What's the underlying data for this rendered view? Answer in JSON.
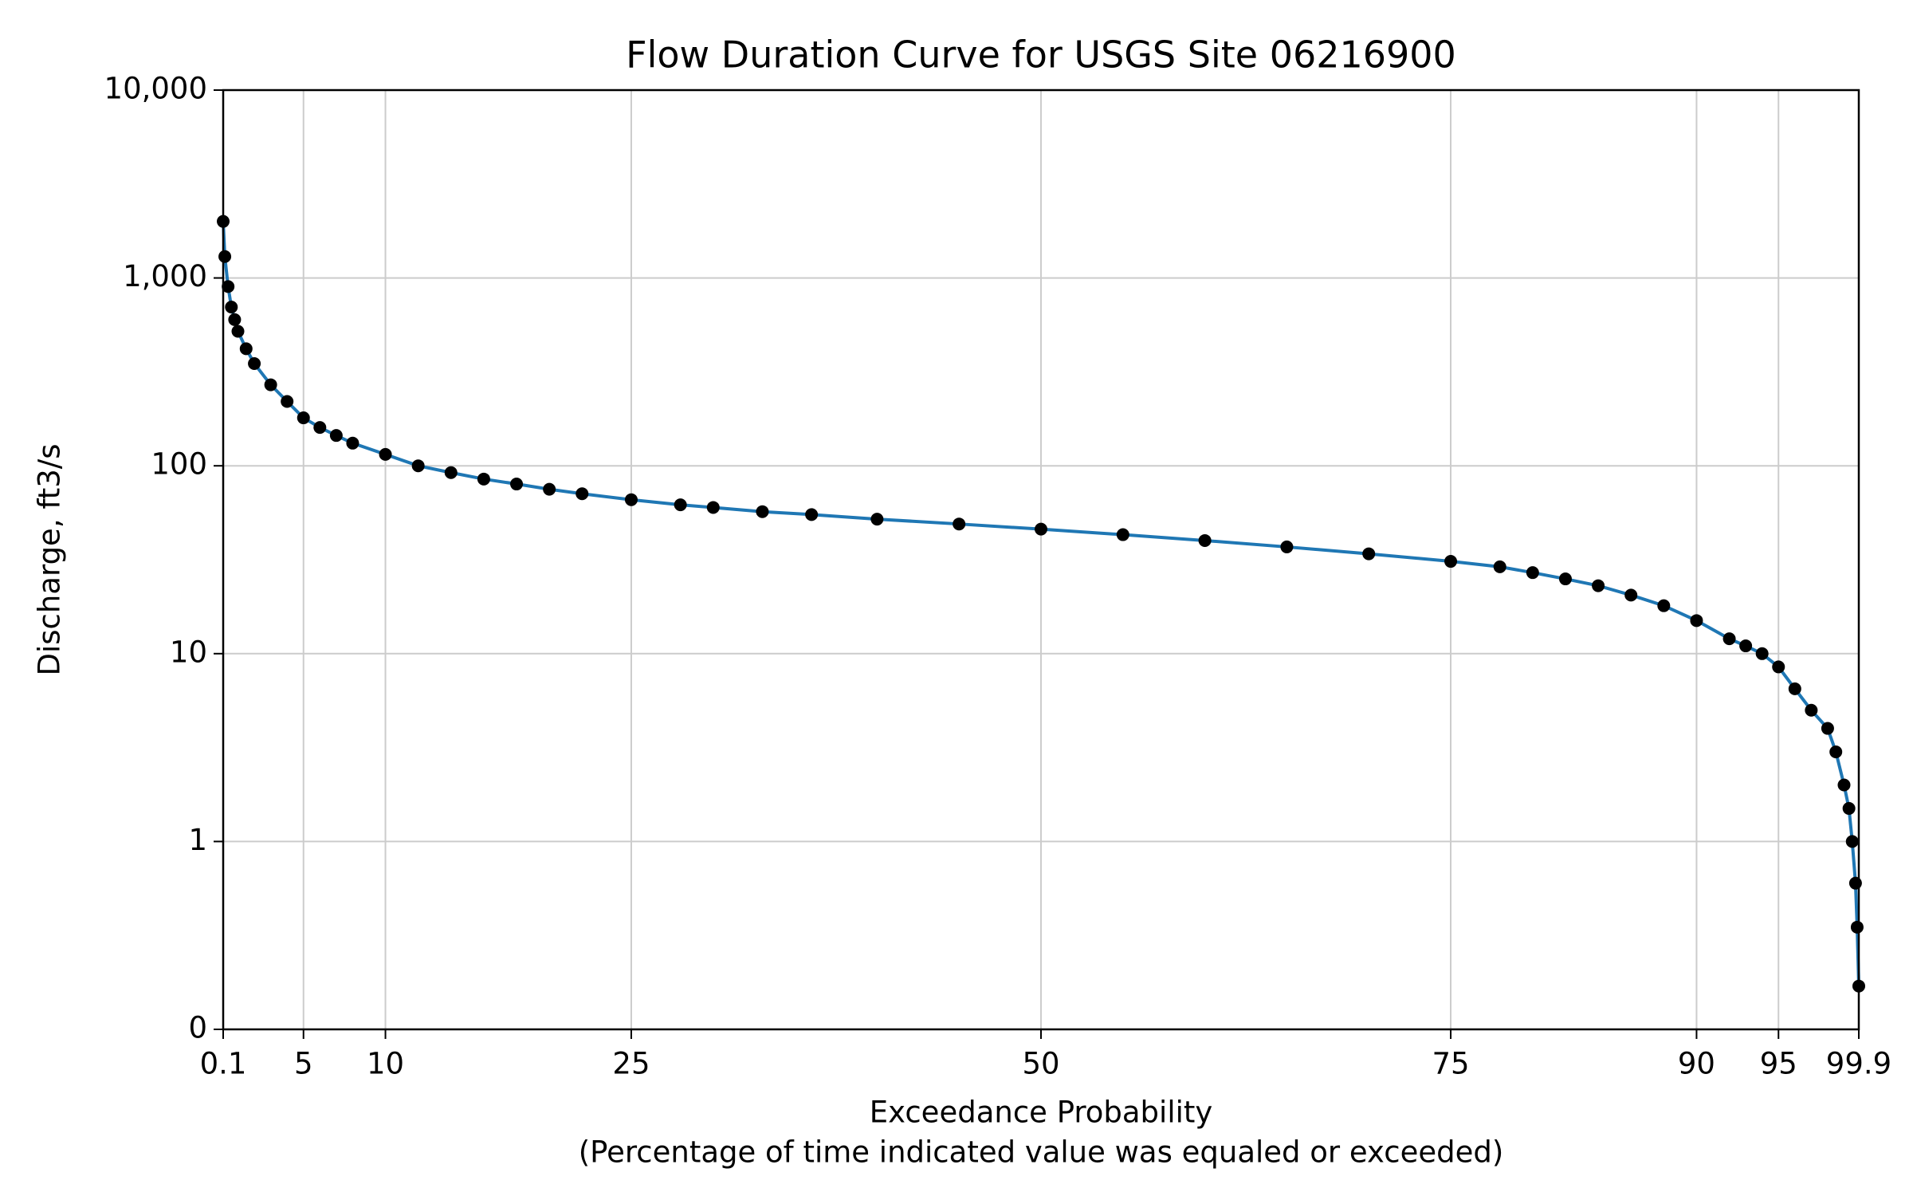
{
  "chart_data": {
    "type": "line",
    "title": "Flow Duration Curve for USGS Site 06216900",
    "xlabel": [
      "Exceedance Probability",
      "(Percentage of time indicated value was equaled or exceeded)"
    ],
    "ylabel": "Discharge, ft3/s",
    "xlim": [
      0.1,
      99.9
    ],
    "xticks": [
      0.1,
      5,
      10,
      25,
      50,
      75,
      90,
      95,
      99.9
    ],
    "ylim": [
      0.1,
      10000
    ],
    "yscale": "log",
    "yticks": [
      {
        "value": 0.1,
        "label": "0"
      },
      1,
      10,
      100,
      {
        "value": 1000,
        "label": "1,000"
      },
      {
        "value": 10000,
        "label": "10,000"
      }
    ],
    "grid": true,
    "series": [
      {
        "name": "Discharge",
        "color": "#1f77b4",
        "marker_color": "#000000",
        "x": [
          0.1,
          0.2,
          0.4,
          0.6,
          0.8,
          1.0,
          1.5,
          2,
          3,
          4,
          5,
          6,
          7,
          8,
          10,
          12,
          14,
          16,
          18,
          20,
          22,
          25,
          28,
          30,
          33,
          36,
          40,
          45,
          50,
          55,
          60,
          65,
          70,
          75,
          78,
          80,
          82,
          84,
          86,
          88,
          90,
          92,
          93,
          94,
          95,
          96,
          97,
          98,
          98.5,
          99,
          99.3,
          99.5,
          99.7,
          99.8,
          99.9
        ],
        "values": [
          2000,
          1300,
          900,
          700,
          600,
          520,
          420,
          350,
          270,
          220,
          180,
          160,
          145,
          132,
          115,
          100,
          92,
          85,
          80,
          75,
          71,
          66,
          62,
          60,
          57,
          55,
          52,
          49,
          46,
          43,
          40,
          37,
          34,
          31,
          29,
          27,
          25,
          23,
          20.5,
          18,
          15,
          12,
          11,
          10,
          8.5,
          6.5,
          5,
          4,
          3,
          2,
          1.5,
          1,
          0.6,
          0.35,
          0.17
        ]
      }
    ]
  }
}
